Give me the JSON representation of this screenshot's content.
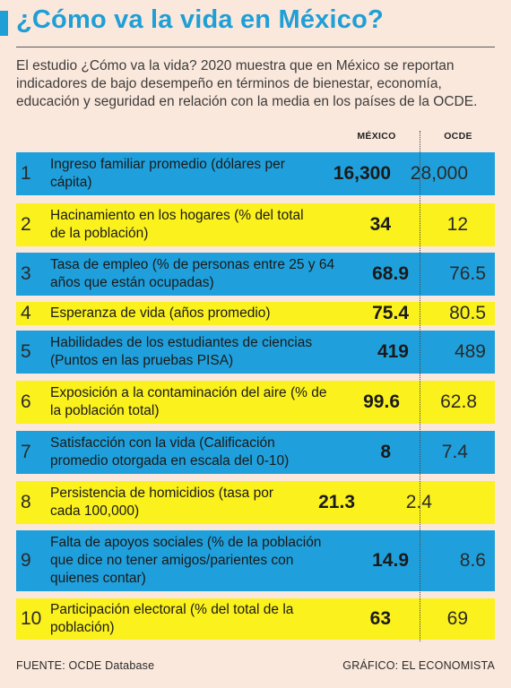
{
  "title": "¿Cómo va la vida en México?",
  "intro": "El estudio ¿Cómo va la vida? 2020 muestra que en México se reportan indicadores de bajo desempeño en términos de bienestar, economía, educación y seguridad en relación con la media en los países de la OCDE.",
  "columns": {
    "mexico": "MÉXICO",
    "ocde": "OCDE"
  },
  "colors": {
    "title": "#1f9fd6",
    "blue_row": "#1fa0dc",
    "yellow_row": "#fbf11c",
    "background": "#fbe8dc"
  },
  "rows": [
    {
      "num": "1",
      "label": "Ingreso familiar promedio (dólares per cápita)",
      "mexico": "16,300",
      "ocde": "28,000",
      "color": "blue"
    },
    {
      "num": "2",
      "label": "Hacinamiento en los hogares (% del total de la población)",
      "mexico": "34",
      "ocde": "12",
      "color": "yellow"
    },
    {
      "num": "3",
      "label": "Tasa de empleo (% de personas entre 25 y 64 años que están ocupadas)",
      "mexico": "68.9",
      "ocde": "76.5",
      "color": "blue"
    },
    {
      "num": "4",
      "label": "Esperanza de vida (años promedio)",
      "mexico": "75.4",
      "ocde": "80.5",
      "color": "yellow"
    },
    {
      "num": "5",
      "label": "Habilidades de los estudiantes de ciencias (Puntos en las pruebas PISA)",
      "mexico": "419",
      "ocde": "489",
      "color": "blue"
    },
    {
      "num": "6",
      "label": "Exposición a la contaminación del aire (% de la población total)",
      "mexico": "99.6",
      "ocde": "62.8",
      "color": "yellow"
    },
    {
      "num": "7",
      "label": "Satisfacción con la vida (Calificación promedio otorgada en escala del 0-10)",
      "mexico": "8",
      "ocde": "7.4",
      "color": "blue"
    },
    {
      "num": "8",
      "label": "Persistencia de homicidios (tasa por cada 100,000)",
      "mexico": "21.3",
      "ocde": "2.4",
      "color": "yellow"
    },
    {
      "num": "9",
      "label": "Falta de apoyos sociales (% de la población que dice no tener amigos/parientes con quienes contar)",
      "mexico": "14.9",
      "ocde": "8.6",
      "color": "blue"
    },
    {
      "num": "10",
      "label": "Participación electoral (% del total de la población)",
      "mexico": "63",
      "ocde": "69",
      "color": "yellow"
    }
  ],
  "footer": {
    "source": "FUENTE: OCDE Database",
    "credit": "GRÁFICO: EL ECONOMISTA"
  }
}
